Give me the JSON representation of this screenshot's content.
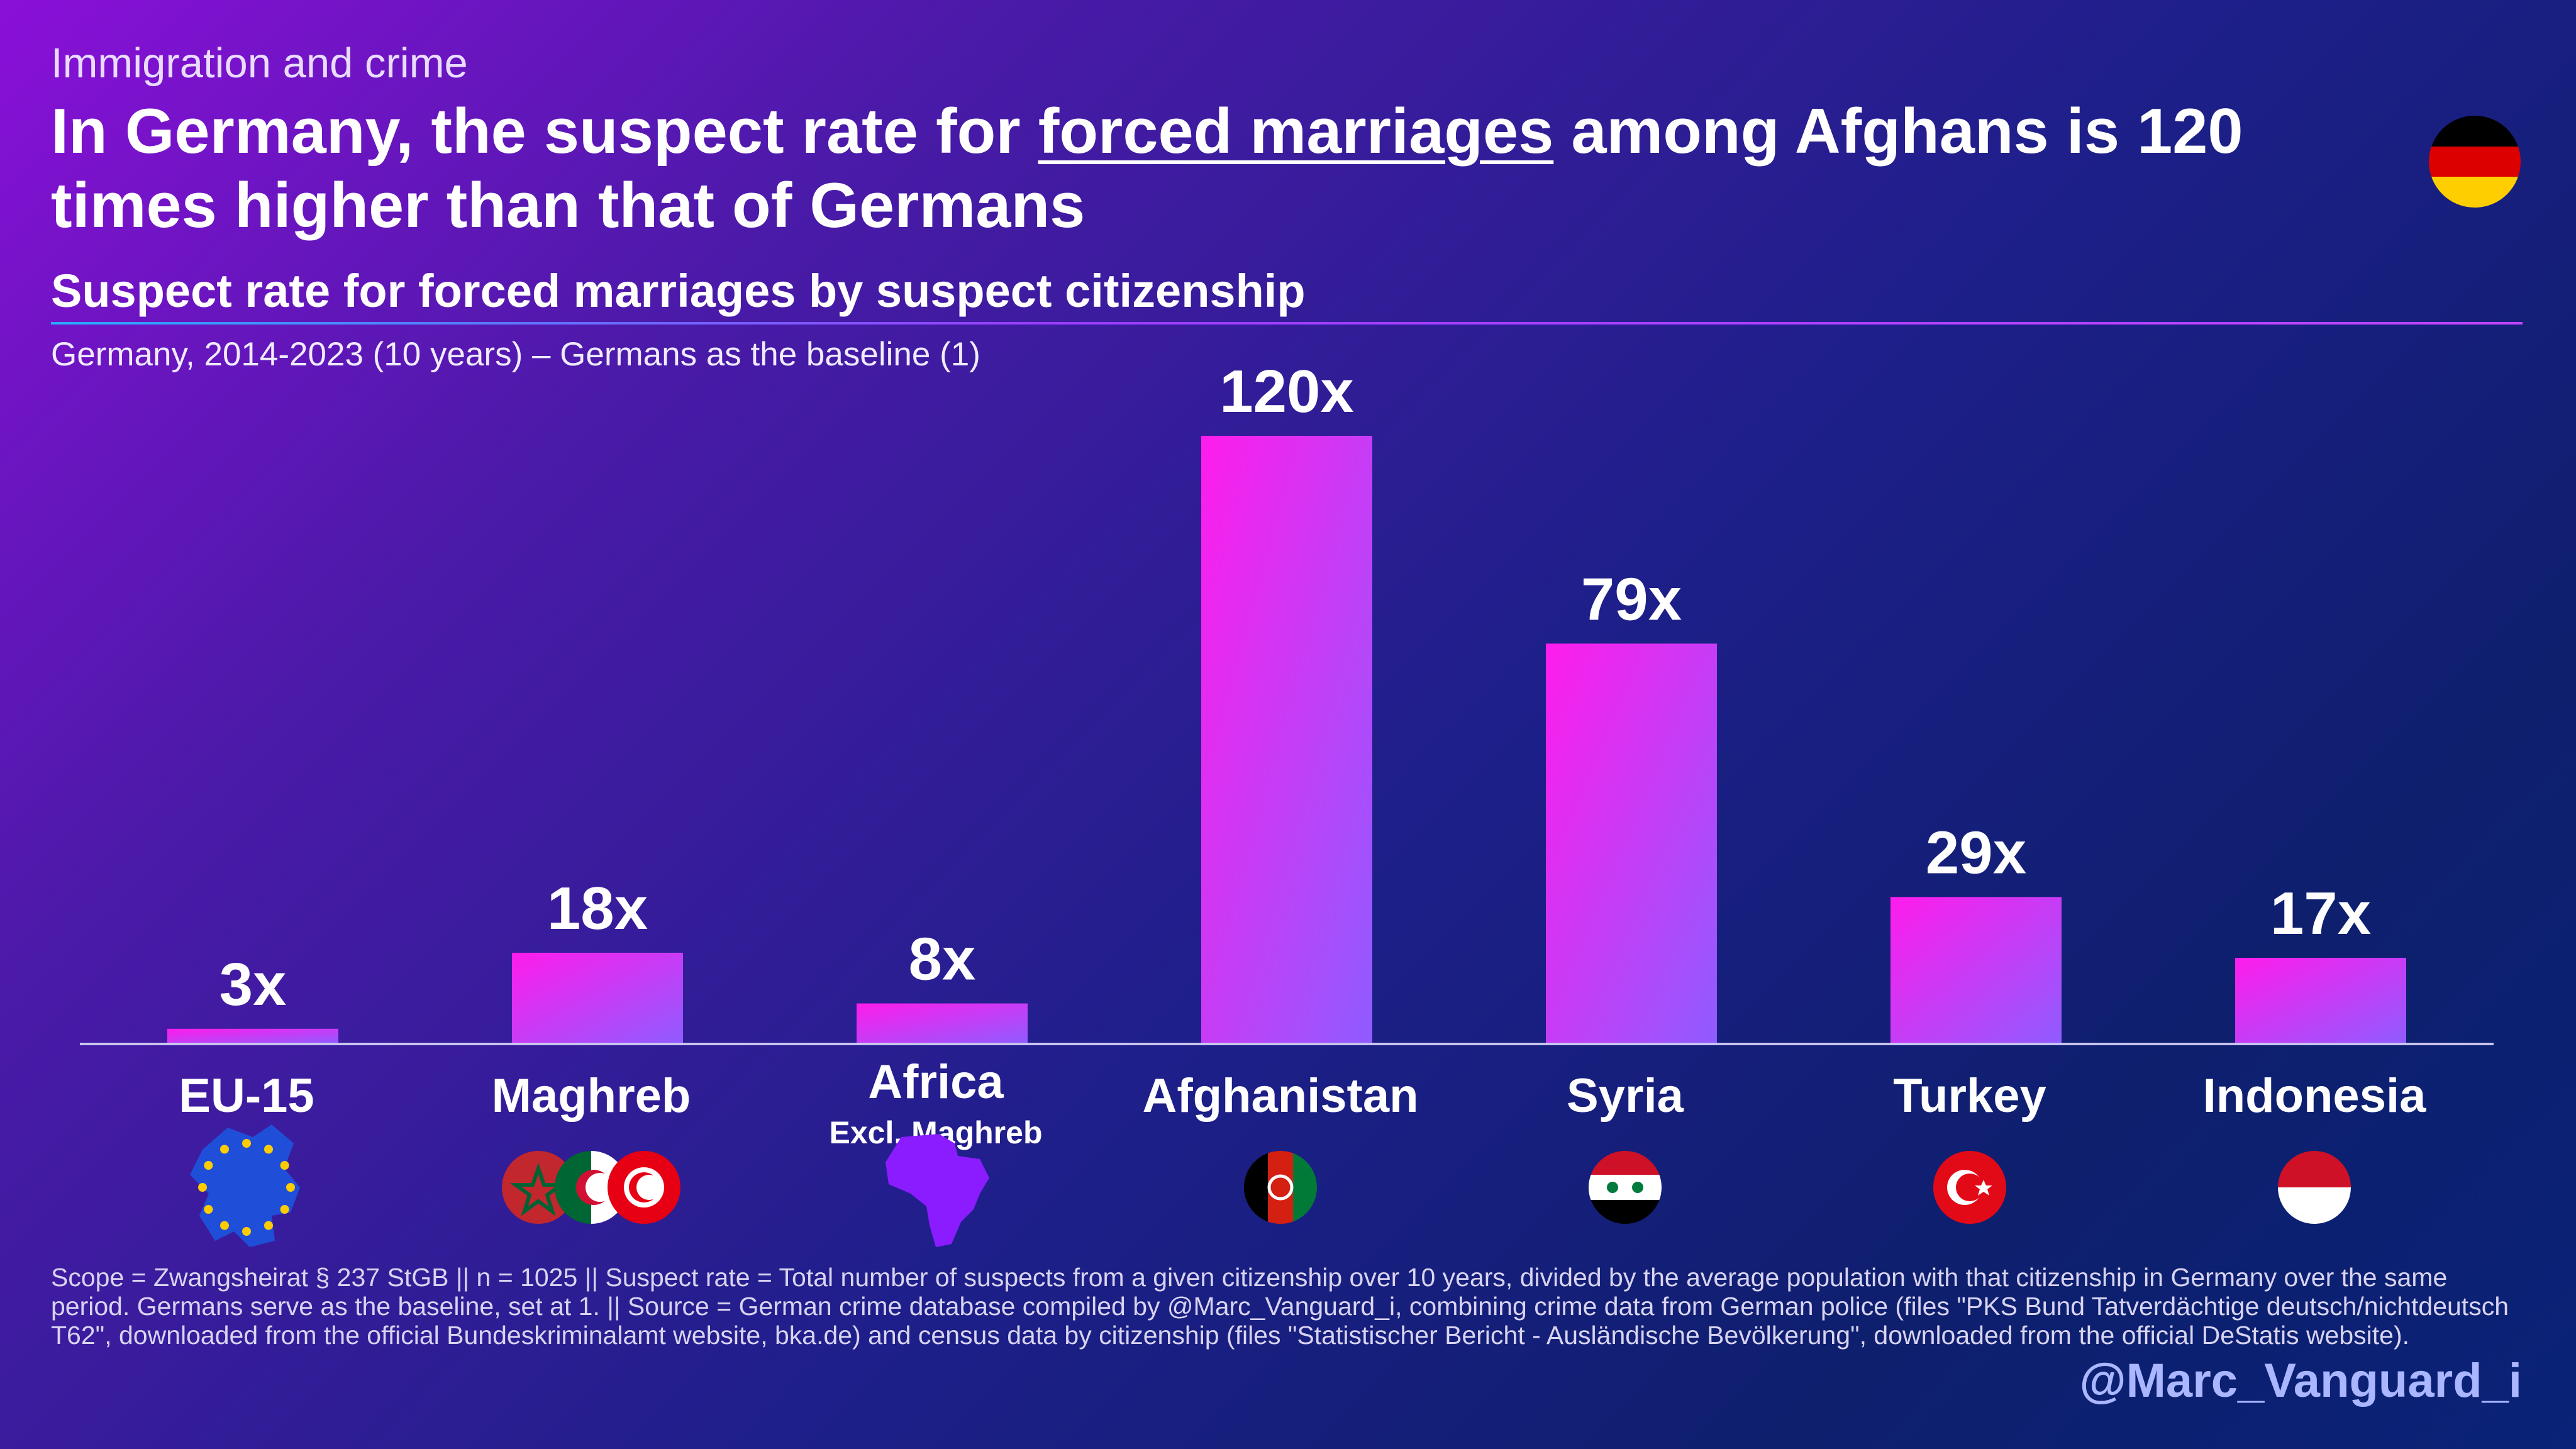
{
  "header": {
    "kicker": "Immigration and crime",
    "headline_before": "In Germany, the suspect rate for ",
    "headline_underlined": "forced marriages",
    "headline_after": " among Afghans is 120 times higher than that of Germans"
  },
  "colors": {
    "bar_top": "#ff1cec",
    "bar_bottom": "#8f5cff",
    "axis": "#c9c4ee"
  },
  "chart_data": {
    "type": "bar",
    "title": "Suspect rate for forced marriages by suspect citizenship",
    "subtitle": "Germany, 2014-2023 (10 years) – Germans as the baseline (1)",
    "categories": [
      "EU-15",
      "Maghreb",
      "Africa",
      "Afghanistan",
      "Syria",
      "Turkey",
      "Indonesia"
    ],
    "category_sublabels": [
      "",
      "",
      "Excl. Maghreb",
      "",
      "",
      "",
      ""
    ],
    "values": [
      3,
      18,
      8,
      120,
      79,
      29,
      17
    ],
    "value_labels": [
      "3x",
      "18x",
      "8x",
      "120x",
      "79x",
      "29x",
      "17x"
    ],
    "category_icons": [
      "eu-map-icon",
      "maghreb-flags-icon",
      "africa-map-icon",
      "afghanistan-flag-icon",
      "syria-flag-icon",
      "turkey-flag-icon",
      "indonesia-flag-icon"
    ],
    "ylim": [
      0,
      120
    ],
    "grid": false,
    "legend": "none"
  },
  "footnote": "Scope = Zwangsheirat § 237 StGB || n = 1025 || Suspect rate = Total number of suspects from a given citizenship over 10 years, divided by the average population with that citizenship in Germany over the same period. Germans serve as the baseline, set at 1. || Source = German crime database compiled by @Marc_Vanguard_i, combining crime data from German police (files \"PKS Bund Tatverdächtige deutsch/nichtdeutsch T62\", downloaded from the official Bundeskriminalamt website, bka.de) and census data by citizenship (files \"Statistischer Bericht - Ausländische Bevölkerung\", downloaded from the official DeStatis website).",
  "handle": "@Marc_Vanguard_i"
}
